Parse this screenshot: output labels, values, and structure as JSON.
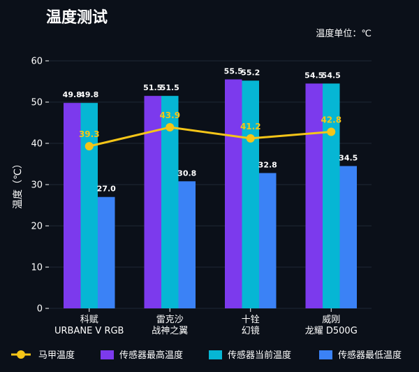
{
  "chart_data": {
    "type": "bar",
    "title": "温度测试",
    "unit_note": "温度单位：℃",
    "ylabel": "温度（℃）",
    "ylim": [
      0,
      60
    ],
    "yticks": [
      0,
      10,
      20,
      30,
      40,
      50,
      60
    ],
    "categories": [
      [
        "科赋",
        "URBANE V RGB"
      ],
      [
        "雷克沙",
        "战神之翼"
      ],
      [
        "十铨",
        "幻镜"
      ],
      [
        "威刚",
        "龙耀 D500G"
      ]
    ],
    "series": [
      {
        "name": "传感器最高温度",
        "type": "bar",
        "color": "#7c3aed",
        "values": [
          49.8,
          51.5,
          55.5,
          54.5
        ]
      },
      {
        "name": "传感器当前温度",
        "type": "bar",
        "color": "#06b6d4",
        "values": [
          49.8,
          51.5,
          55.2,
          54.5
        ]
      },
      {
        "name": "传感器最低温度",
        "type": "bar",
        "color": "#3b82f6",
        "values": [
          27.0,
          30.8,
          32.8,
          34.5
        ]
      },
      {
        "name": "马甲温度",
        "type": "line",
        "color": "#f5c518",
        "values": [
          39.3,
          43.9,
          41.2,
          42.8
        ]
      }
    ],
    "legend_order": [
      "马甲温度",
      "传感器最高温度",
      "传感器当前温度",
      "传感器最低温度"
    ],
    "legend_position": "bottom",
    "grid": true
  }
}
